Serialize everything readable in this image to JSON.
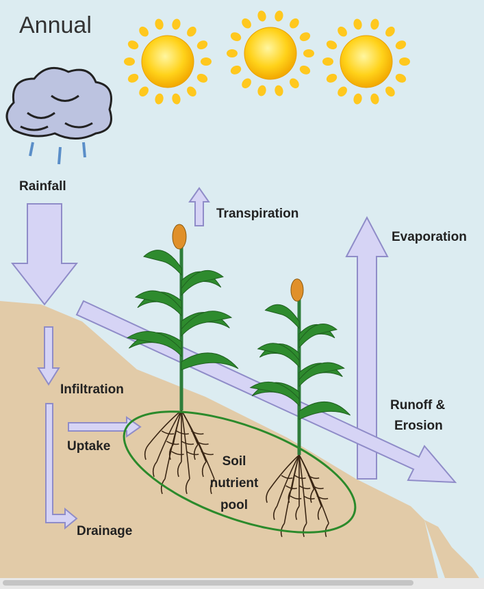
{
  "title": "Annual",
  "labels": {
    "rainfall": "Rainfall",
    "transpiration": "Transpiration",
    "evaporation": "Evaporation",
    "infiltration": "Infiltration",
    "uptake": "Uptake",
    "drainage": "Drainage",
    "runoff": [
      "Runoff &",
      "Erosion"
    ],
    "pool": [
      "Soil",
      "nutrient",
      "pool"
    ]
  }
}
